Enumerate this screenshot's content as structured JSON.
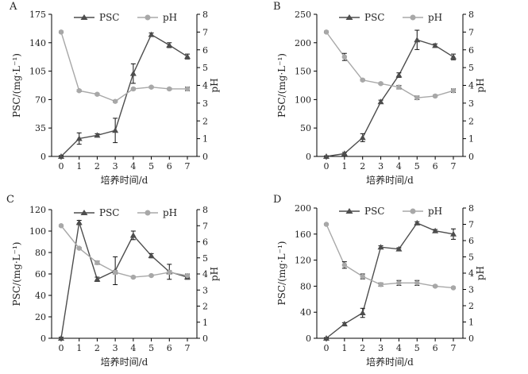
{
  "figure": {
    "xlabel": "培养时间/d",
    "ylabel_left": "PSC/(mg·L⁻¹)",
    "ylabel_right": "pH"
  },
  "legend": {
    "psc": "PSC",
    "ph": "pH"
  },
  "colors": {
    "psc": "#4d4d4d",
    "ph": "#a8a8a8",
    "axis": "#000000"
  },
  "chart_data": [
    {
      "type": "line",
      "panel": "A",
      "x": [
        0,
        1,
        2,
        3,
        4,
        5,
        6,
        7
      ],
      "ylim_left": [
        0,
        175
      ],
      "yticks_left": [
        0,
        35,
        70,
        105,
        140,
        175
      ],
      "ylim_right": [
        0,
        8
      ],
      "yticks_right": [
        0,
        1,
        2,
        3,
        4,
        5,
        6,
        7,
        8
      ],
      "series": [
        {
          "name": "PSC",
          "axis": "left",
          "values": [
            0,
            22,
            26,
            32,
            102,
            150,
            137,
            123
          ],
          "errors": [
            1,
            7,
            2,
            15,
            12,
            2,
            3,
            3
          ]
        },
        {
          "name": "pH",
          "axis": "right",
          "values": [
            7.0,
            3.7,
            3.5,
            3.1,
            3.8,
            3.9,
            3.8,
            3.8
          ],
          "errors": [
            0.05,
            0.05,
            0.05,
            0.05,
            0.05,
            0.05,
            0.05,
            0.1
          ]
        }
      ]
    },
    {
      "type": "line",
      "panel": "B",
      "x": [
        0,
        1,
        2,
        3,
        4,
        5,
        6,
        7
      ],
      "ylim_left": [
        0,
        250
      ],
      "yticks_left": [
        0,
        50,
        100,
        150,
        200,
        250
      ],
      "ylim_right": [
        0,
        8
      ],
      "yticks_right": [
        0,
        1,
        2,
        3,
        4,
        5,
        6,
        7,
        8
      ],
      "series": [
        {
          "name": "PSC",
          "axis": "left",
          "values": [
            0,
            5,
            33,
            96,
            143,
            205,
            195,
            175
          ],
          "errors": [
            1,
            2,
            7,
            3,
            4,
            17,
            3,
            5
          ]
        },
        {
          "name": "pH",
          "axis": "right",
          "values": [
            7.0,
            5.6,
            4.3,
            4.1,
            3.9,
            3.3,
            3.4,
            3.7
          ],
          "errors": [
            0.05,
            0.2,
            0.05,
            0.05,
            0.1,
            0.1,
            0.05,
            0.1
          ]
        }
      ]
    },
    {
      "type": "line",
      "panel": "C",
      "x": [
        0,
        1,
        2,
        3,
        4,
        5,
        6,
        7
      ],
      "ylim_left": [
        0,
        120
      ],
      "yticks_left": [
        0,
        20,
        40,
        60,
        80,
        100,
        120
      ],
      "ylim_right": [
        0,
        8
      ],
      "yticks_right": [
        0,
        1,
        2,
        3,
        4,
        5,
        6,
        7,
        8
      ],
      "series": [
        {
          "name": "PSC",
          "axis": "left",
          "values": [
            0,
            108,
            55,
            63,
            96,
            77,
            62,
            57
          ],
          "errors": [
            1,
            2,
            2,
            13,
            4,
            2,
            7,
            2
          ]
        },
        {
          "name": "pH",
          "axis": "right",
          "values": [
            7.0,
            5.6,
            4.7,
            4.1,
            3.8,
            3.9,
            4.1,
            3.9
          ],
          "errors": [
            0.05,
            0.05,
            0.1,
            0.1,
            0.05,
            0.05,
            0.1,
            0.1
          ]
        }
      ]
    },
    {
      "type": "line",
      "panel": "D",
      "x": [
        0,
        1,
        2,
        3,
        4,
        5,
        6,
        7
      ],
      "ylim_left": [
        0,
        200
      ],
      "yticks_left": [
        0,
        40,
        80,
        120,
        160,
        200
      ],
      "ylim_right": [
        0,
        8
      ],
      "yticks_right": [
        0,
        1,
        2,
        3,
        4,
        5,
        6,
        7,
        8
      ],
      "series": [
        {
          "name": "PSC",
          "axis": "left",
          "values": [
            0,
            22,
            39,
            140,
            137,
            177,
            165,
            160
          ],
          "errors": [
            1,
            2,
            7,
            2,
            2,
            2,
            2,
            8
          ]
        },
        {
          "name": "pH",
          "axis": "right",
          "values": [
            7.0,
            4.5,
            3.8,
            3.3,
            3.4,
            3.4,
            3.2,
            3.1
          ],
          "errors": [
            0.05,
            0.2,
            0.15,
            0.1,
            0.15,
            0.15,
            0.05,
            0.05
          ]
        }
      ]
    }
  ]
}
